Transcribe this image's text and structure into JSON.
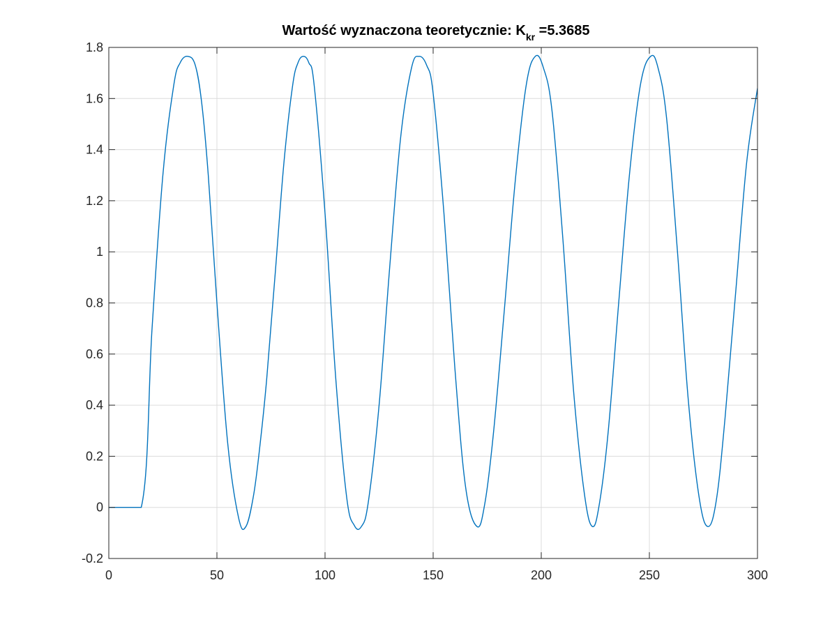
{
  "chart_data": {
    "type": "line",
    "title": {
      "prefix": "Wartość wyznaczona teoretycznie: K",
      "subscript": "kr",
      "suffix": " =5.3685"
    },
    "xlabel": "",
    "ylabel": "",
    "xlim": [
      0,
      300
    ],
    "ylim": [
      -0.2,
      1.8
    ],
    "xticks": [
      0,
      50,
      100,
      150,
      200,
      250,
      300
    ],
    "xtick_labels": [
      "0",
      "50",
      "100",
      "150",
      "200",
      "250",
      "300"
    ],
    "yticks": [
      -0.2,
      0,
      0.2,
      0.4,
      0.6,
      0.8,
      1,
      1.2,
      1.4,
      1.6,
      1.8
    ],
    "ytick_labels": [
      "-0.2",
      "0",
      "0.2",
      "0.4",
      "0.6",
      "0.8",
      "1",
      "1.2",
      "1.4",
      "1.6",
      "1.8"
    ],
    "grid": true,
    "line_color": "#0072bd",
    "series": [
      {
        "x": [
          0,
          15,
          20,
          25,
          30,
          33,
          36.5,
          40,
          43,
          46,
          50,
          55,
          60,
          63.4,
          67,
          70,
          73,
          77,
          81,
          85,
          87.5,
          90,
          92.5,
          95,
          100,
          105,
          110,
          113.5,
          116.8,
          120,
          125,
          130,
          135,
          140,
          143.5,
          147,
          150,
          155,
          160,
          165,
          170.3,
          174,
          178,
          183,
          188,
          193,
          197.2,
          201,
          205,
          210,
          215,
          220,
          223.7,
          227,
          231,
          236,
          241,
          246,
          250.6,
          254,
          258,
          263,
          268,
          273,
          277.1,
          281,
          285,
          290,
          295,
          300
        ],
        "y": [
          0,
          0,
          0.7,
          1.3,
          1.65,
          1.74,
          1.765,
          1.73,
          1.58,
          1.3,
          0.8,
          0.25,
          -0.04,
          -0.075,
          0.05,
          0.25,
          0.5,
          0.92,
          1.35,
          1.65,
          1.74,
          1.765,
          1.74,
          1.65,
          1.15,
          0.5,
          0.04,
          -0.07,
          -0.075,
          0.02,
          0.4,
          0.95,
          1.45,
          1.72,
          1.765,
          1.73,
          1.62,
          1.15,
          0.55,
          0.08,
          -0.075,
          0.02,
          0.3,
          0.78,
          1.28,
          1.65,
          1.765,
          1.72,
          1.55,
          1.05,
          0.45,
          0.05,
          -0.075,
          0.02,
          0.3,
          0.82,
          1.32,
          1.66,
          1.765,
          1.72,
          1.52,
          1.0,
          0.42,
          0.04,
          -0.075,
          0.03,
          0.35,
          0.85,
          1.35,
          1.64
        ]
      }
    ]
  }
}
